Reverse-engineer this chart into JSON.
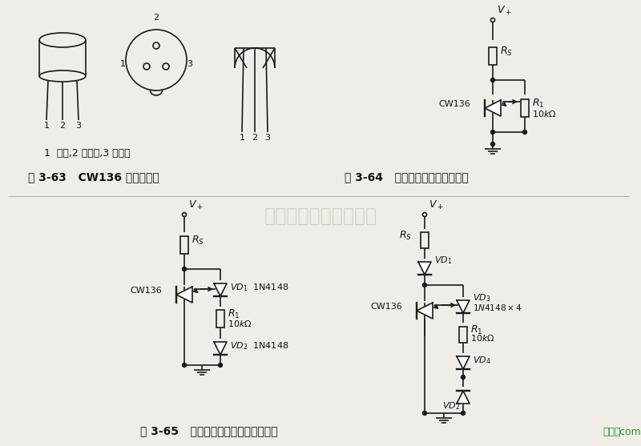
{
  "bg_color": "#f0ede8",
  "watermark": "杭州将睿科技有限公司",
  "watermark_color": "#c0b8b0",
  "fig3_63_label": "图 3-63   CW136 的封装形式",
  "fig3_64_label": "图 3-64   调节反向击穿电压的电路",
  "fig3_65_label": "图 3-65   电位器两端串联二极管的电路",
  "pin_label": "1  调节,2 正电源,3 负电源",
  "logo_text": "接线图.com",
  "logo_color": "#229922",
  "line_color": "#1a1a1a",
  "text_color": "#111111"
}
